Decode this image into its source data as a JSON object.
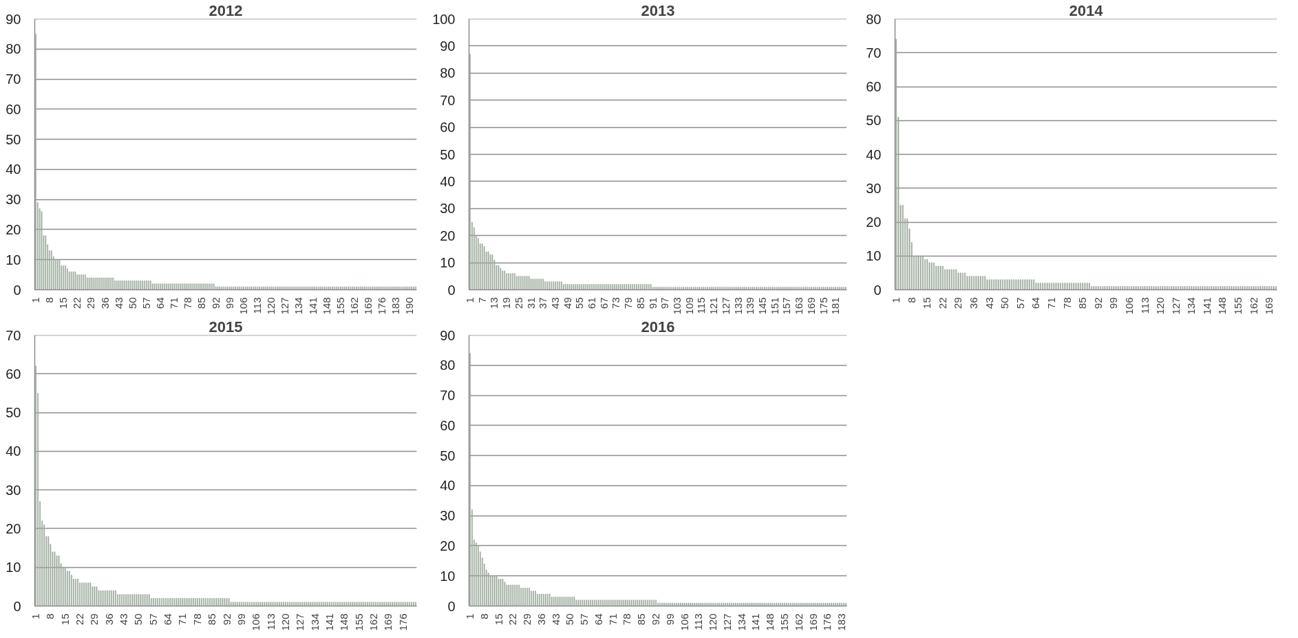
{
  "chart_data": [
    {
      "type": "bar",
      "title": "2012",
      "color": "#9eab9e",
      "grid": "y",
      "ylim": [
        0,
        90
      ],
      "yticks": [
        0,
        10,
        20,
        30,
        40,
        50,
        60,
        70,
        80,
        90
      ],
      "categories": [
        "1",
        null,
        null,
        null,
        null,
        null,
        null,
        "8",
        null,
        null,
        null,
        null,
        null,
        null,
        "15",
        null,
        null,
        null,
        null,
        null,
        null,
        "22",
        null,
        null,
        null,
        null,
        null,
        null,
        "29",
        null,
        null,
        null,
        null,
        null,
        null,
        "36",
        null,
        null,
        null,
        null,
        null,
        null,
        "43",
        null,
        null,
        null,
        null,
        null,
        null,
        "50",
        null,
        null,
        null,
        null,
        null,
        null,
        "57",
        null,
        null,
        null,
        null,
        null,
        null,
        "64",
        null,
        null,
        null,
        null,
        null,
        null,
        "71",
        null,
        null,
        null,
        null,
        null,
        null,
        "78",
        null,
        null,
        null,
        null,
        null,
        null,
        "85",
        null,
        null,
        null,
        null,
        null,
        null,
        "92",
        null,
        null,
        null,
        null,
        null,
        null,
        "99",
        null,
        null,
        null,
        null,
        null,
        null,
        "106",
        null,
        null,
        null,
        null,
        null,
        null,
        "113",
        null,
        null,
        null,
        null,
        null,
        null,
        "120",
        null,
        null,
        null,
        null,
        null,
        null,
        "127",
        null,
        null,
        null,
        null,
        null,
        null,
        "134",
        null,
        null,
        null,
        null,
        null,
        null,
        "141",
        null,
        null,
        null,
        null,
        null,
        null,
        "148",
        null,
        null,
        null,
        null,
        null,
        null,
        "155",
        null,
        null,
        null,
        null,
        null,
        null,
        "162",
        null,
        null,
        null,
        null,
        null,
        null,
        "169",
        null,
        null,
        null,
        null,
        null,
        null,
        "176",
        null,
        null,
        null,
        null,
        null,
        null,
        "183",
        null,
        null,
        null,
        null,
        null,
        null,
        "190",
        null,
        null,
        null
      ],
      "values": [
        85,
        29,
        27,
        26,
        18,
        18,
        15,
        13,
        13,
        11,
        10,
        10,
        10,
        8,
        8,
        8,
        7,
        6,
        6,
        6,
        6,
        5,
        5,
        5,
        5,
        5,
        4,
        4,
        4,
        4,
        4,
        4,
        4,
        4,
        4,
        4,
        4,
        4,
        4,
        4,
        3,
        3,
        3,
        3,
        3,
        3,
        3,
        3,
        3,
        3,
        3,
        3,
        3,
        3,
        3,
        3,
        3,
        3,
        3,
        2,
        2,
        2,
        2,
        2,
        2,
        2,
        2,
        2,
        2,
        2,
        2,
        2,
        2,
        2,
        2,
        2,
        2,
        2,
        2,
        2,
        2,
        2,
        2,
        2,
        2,
        2,
        2,
        2,
        2,
        2,
        2,
        1,
        1,
        1,
        1,
        1,
        1,
        1,
        1,
        1,
        1,
        1,
        1,
        1,
        1,
        1,
        1,
        1,
        1,
        1,
        1,
        1,
        1,
        1,
        1,
        1,
        1,
        1,
        1,
        1,
        1,
        1,
        1,
        1,
        1,
        1,
        1,
        1,
        1,
        1,
        1,
        1,
        1,
        1,
        1,
        1,
        1,
        1,
        1,
        1,
        1,
        1,
        1,
        1,
        1,
        1,
        1,
        1,
        1,
        1,
        1,
        1,
        1,
        1,
        1,
        1,
        1,
        1,
        1,
        1,
        1,
        1,
        1,
        1,
        1,
        1,
        1,
        1,
        1,
        1,
        1,
        1,
        1,
        1,
        1,
        1,
        1,
        1,
        1,
        1,
        1,
        1,
        1,
        1,
        1,
        1,
        1,
        1,
        1,
        1,
        1,
        1,
        1
      ]
    },
    {
      "type": "bar",
      "title": "2013",
      "color": "#9eab9e",
      "grid": "y",
      "ylim": [
        0,
        100
      ],
      "yticks": [
        0,
        10,
        20,
        30,
        40,
        50,
        60,
        70,
        80,
        90,
        100
      ],
      "categories": [
        "1",
        null,
        null,
        null,
        null,
        null,
        "7",
        null,
        null,
        null,
        null,
        null,
        "13",
        null,
        null,
        null,
        null,
        null,
        "19",
        null,
        null,
        null,
        null,
        null,
        "25",
        null,
        null,
        null,
        null,
        null,
        "31",
        null,
        null,
        null,
        null,
        null,
        "37",
        null,
        null,
        null,
        null,
        null,
        "43",
        null,
        null,
        null,
        null,
        null,
        "49",
        null,
        null,
        null,
        null,
        null,
        "55",
        null,
        null,
        null,
        null,
        null,
        "61",
        null,
        null,
        null,
        null,
        null,
        "67",
        null,
        null,
        null,
        null,
        null,
        "73",
        null,
        null,
        null,
        null,
        null,
        "79",
        null,
        null,
        null,
        null,
        null,
        "85",
        null,
        null,
        null,
        null,
        null,
        "91",
        null,
        null,
        null,
        null,
        null,
        "97",
        null,
        null,
        null,
        null,
        null,
        "103",
        null,
        null,
        null,
        null,
        null,
        "109",
        null,
        null,
        null,
        null,
        null,
        "115",
        null,
        null,
        null,
        null,
        null,
        "121",
        null,
        null,
        null,
        null,
        null,
        "127",
        null,
        null,
        null,
        null,
        null,
        "133",
        null,
        null,
        null,
        null,
        null,
        "139",
        null,
        null,
        null,
        null,
        null,
        "145",
        null,
        null,
        null,
        null,
        null,
        "151",
        null,
        null,
        null,
        null,
        null,
        "157",
        null,
        null,
        null,
        null,
        null,
        "163",
        null,
        null,
        null,
        null,
        null,
        "169",
        null,
        null,
        null,
        null,
        null,
        "175",
        null,
        null,
        null,
        null,
        null,
        "181",
        null,
        null,
        null,
        null,
        null
      ],
      "values": [
        87,
        25,
        23,
        20,
        19,
        17,
        17,
        16,
        14,
        14,
        13,
        13,
        11,
        9,
        9,
        8,
        7,
        7,
        6,
        6,
        6,
        6,
        6,
        5,
        5,
        5,
        5,
        5,
        5,
        5,
        4,
        4,
        4,
        4,
        4,
        4,
        4,
        3,
        3,
        3,
        3,
        3,
        3,
        3,
        3,
        3,
        2,
        2,
        2,
        2,
        2,
        2,
        2,
        2,
        2,
        2,
        2,
        2,
        2,
        2,
        2,
        2,
        2,
        2,
        2,
        2,
        2,
        2,
        2,
        2,
        2,
        2,
        2,
        2,
        2,
        2,
        2,
        2,
        2,
        2,
        2,
        2,
        2,
        2,
        2,
        2,
        2,
        2,
        2,
        2,
        1,
        1,
        1,
        1,
        1,
        1,
        1,
        1,
        1,
        1,
        1,
        1,
        1,
        1,
        1,
        1,
        1,
        1,
        1,
        1,
        1,
        1,
        1,
        1,
        1,
        1,
        1,
        1,
        1,
        1,
        1,
        1,
        1,
        1,
        1,
        1,
        1,
        1,
        1,
        1,
        1,
        1,
        1,
        1,
        1,
        1,
        1,
        1,
        1,
        1,
        1,
        1,
        1,
        1,
        1,
        1,
        1,
        1,
        1,
        1,
        1,
        1,
        1,
        1,
        1,
        1,
        1,
        1,
        1,
        1,
        1,
        1,
        1,
        1,
        1,
        1,
        1,
        1,
        1,
        1,
        1,
        1,
        1,
        1,
        1,
        1,
        1,
        1,
        1,
        1,
        1,
        1,
        1,
        1,
        1,
        1
      ]
    },
    {
      "type": "bar",
      "title": "2014",
      "color": "#9eab9e",
      "grid": "y",
      "ylim": [
        0,
        80
      ],
      "yticks": [
        0,
        10,
        20,
        30,
        40,
        50,
        60,
        70,
        80
      ],
      "categories": [
        "1",
        null,
        null,
        null,
        null,
        null,
        null,
        "8",
        null,
        null,
        null,
        null,
        null,
        null,
        "15",
        null,
        null,
        null,
        null,
        null,
        null,
        "22",
        null,
        null,
        null,
        null,
        null,
        null,
        "29",
        null,
        null,
        null,
        null,
        null,
        null,
        "36",
        null,
        null,
        null,
        null,
        null,
        null,
        "43",
        null,
        null,
        null,
        null,
        null,
        null,
        "50",
        null,
        null,
        null,
        null,
        null,
        null,
        "57",
        null,
        null,
        null,
        null,
        null,
        null,
        "64",
        null,
        null,
        null,
        null,
        null,
        null,
        "71",
        null,
        null,
        null,
        null,
        null,
        null,
        "78",
        null,
        null,
        null,
        null,
        null,
        null,
        "85",
        null,
        null,
        null,
        null,
        null,
        null,
        "92",
        null,
        null,
        null,
        null,
        null,
        null,
        "99",
        null,
        null,
        null,
        null,
        null,
        null,
        "106",
        null,
        null,
        null,
        null,
        null,
        null,
        "113",
        null,
        null,
        null,
        null,
        null,
        null,
        "120",
        null,
        null,
        null,
        null,
        null,
        null,
        "127",
        null,
        null,
        null,
        null,
        null,
        null,
        "134",
        null,
        null,
        null,
        null,
        null,
        null,
        "141",
        null,
        null,
        null,
        null,
        null,
        null,
        "148",
        null,
        null,
        null,
        null,
        null,
        null,
        "155",
        null,
        null,
        null,
        null,
        null,
        null,
        "162",
        null,
        null,
        null,
        null,
        null,
        null,
        "169",
        null,
        null,
        null
      ],
      "values": [
        74,
        51,
        25,
        25,
        21,
        21,
        18,
        14,
        10,
        10,
        10,
        10,
        10,
        9,
        9,
        8,
        8,
        8,
        7,
        7,
        7,
        7,
        6,
        6,
        6,
        6,
        6,
        6,
        5,
        5,
        5,
        5,
        4,
        4,
        4,
        4,
        4,
        4,
        4,
        4,
        4,
        3,
        3,
        3,
        3,
        3,
        3,
        3,
        3,
        3,
        3,
        3,
        3,
        3,
        3,
        3,
        3,
        3,
        3,
        3,
        3,
        3,
        3,
        2,
        2,
        2,
        2,
        2,
        2,
        2,
        2,
        2,
        2,
        2,
        2,
        2,
        2,
        2,
        2,
        2,
        2,
        2,
        2,
        2,
        2,
        2,
        2,
        2,
        1,
        1,
        1,
        1,
        1,
        1,
        1,
        1,
        1,
        1,
        1,
        1,
        1,
        1,
        1,
        1,
        1,
        1,
        1,
        1,
        1,
        1,
        1,
        1,
        1,
        1,
        1,
        1,
        1,
        1,
        1,
        1,
        1,
        1,
        1,
        1,
        1,
        1,
        1,
        1,
        1,
        1,
        1,
        1,
        1,
        1,
        1,
        1,
        1,
        1,
        1,
        1,
        1,
        1,
        1,
        1,
        1,
        1,
        1,
        1,
        1,
        1,
        1,
        1,
        1,
        1,
        1,
        1,
        1,
        1,
        1,
        1,
        1,
        1,
        1,
        1,
        1,
        1,
        1,
        1,
        1,
        1,
        1,
        1
      ]
    },
    {
      "type": "bar",
      "title": "2015",
      "color": "#9eab9e",
      "grid": "y",
      "ylim": [
        0,
        70
      ],
      "yticks": [
        0,
        10,
        20,
        30,
        40,
        50,
        60,
        70
      ],
      "categories": [
        "1",
        null,
        null,
        null,
        null,
        null,
        null,
        "8",
        null,
        null,
        null,
        null,
        null,
        null,
        "15",
        null,
        null,
        null,
        null,
        null,
        null,
        "22",
        null,
        null,
        null,
        null,
        null,
        null,
        "29",
        null,
        null,
        null,
        null,
        null,
        null,
        "36",
        null,
        null,
        null,
        null,
        null,
        null,
        "43",
        null,
        null,
        null,
        null,
        null,
        null,
        "50",
        null,
        null,
        null,
        null,
        null,
        null,
        "57",
        null,
        null,
        null,
        null,
        null,
        null,
        "64",
        null,
        null,
        null,
        null,
        null,
        null,
        "71",
        null,
        null,
        null,
        null,
        null,
        null,
        "78",
        null,
        null,
        null,
        null,
        null,
        null,
        "85",
        null,
        null,
        null,
        null,
        null,
        null,
        "92",
        null,
        null,
        null,
        null,
        null,
        null,
        "99",
        null,
        null,
        null,
        null,
        null,
        null,
        "106",
        null,
        null,
        null,
        null,
        null,
        null,
        "113",
        null,
        null,
        null,
        null,
        null,
        null,
        "120",
        null,
        null,
        null,
        null,
        null,
        null,
        "127",
        null,
        null,
        null,
        null,
        null,
        null,
        "134",
        null,
        null,
        null,
        null,
        null,
        null,
        "141",
        null,
        null,
        null,
        null,
        null,
        null,
        "148",
        null,
        null,
        null,
        null,
        null,
        null,
        "155",
        null,
        null,
        null,
        null,
        null,
        null,
        "162",
        null,
        null,
        null,
        null,
        null,
        null,
        "169",
        null,
        null,
        null,
        null,
        null,
        null,
        "176",
        null,
        null,
        null,
        null,
        null,
        null
      ],
      "values": [
        62,
        55,
        27,
        22,
        21,
        18,
        18,
        16,
        14,
        14,
        13,
        13,
        11,
        10,
        10,
        9,
        9,
        8,
        7,
        7,
        7,
        6,
        6,
        6,
        6,
        6,
        6,
        5,
        5,
        5,
        4,
        4,
        4,
        4,
        4,
        4,
        4,
        4,
        4,
        3,
        3,
        3,
        3,
        3,
        3,
        3,
        3,
        3,
        3,
        3,
        3,
        3,
        3,
        3,
        3,
        2,
        2,
        2,
        2,
        2,
        2,
        2,
        2,
        2,
        2,
        2,
        2,
        2,
        2,
        2,
        2,
        2,
        2,
        2,
        2,
        2,
        2,
        2,
        2,
        2,
        2,
        2,
        2,
        2,
        2,
        2,
        2,
        2,
        2,
        2,
        2,
        2,
        2,
        1,
        1,
        1,
        1,
        1,
        1,
        1,
        1,
        1,
        1,
        1,
        1,
        1,
        1,
        1,
        1,
        1,
        1,
        1,
        1,
        1,
        1,
        1,
        1,
        1,
        1,
        1,
        1,
        1,
        1,
        1,
        1,
        1,
        1,
        1,
        1,
        1,
        1,
        1,
        1,
        1,
        1,
        1,
        1,
        1,
        1,
        1,
        1,
        1,
        1,
        1,
        1,
        1,
        1,
        1,
        1,
        1,
        1,
        1,
        1,
        1,
        1,
        1,
        1,
        1,
        1,
        1,
        1,
        1,
        1,
        1,
        1,
        1,
        1,
        1,
        1,
        1,
        1,
        1,
        1,
        1,
        1,
        1,
        1,
        1,
        1,
        1,
        1,
        1
      ]
    },
    {
      "type": "bar",
      "title": "2016",
      "color": "#9eab9e",
      "grid": "y",
      "ylim": [
        0,
        90
      ],
      "yticks": [
        0,
        10,
        20,
        30,
        40,
        50,
        60,
        70,
        80,
        90
      ],
      "categories": [
        "1",
        null,
        null,
        null,
        null,
        null,
        null,
        "8",
        null,
        null,
        null,
        null,
        null,
        null,
        "15",
        null,
        null,
        null,
        null,
        null,
        null,
        "22",
        null,
        null,
        null,
        null,
        null,
        null,
        "29",
        null,
        null,
        null,
        null,
        null,
        null,
        "36",
        null,
        null,
        null,
        null,
        null,
        null,
        "43",
        null,
        null,
        null,
        null,
        null,
        null,
        "50",
        null,
        null,
        null,
        null,
        null,
        null,
        "57",
        null,
        null,
        null,
        null,
        null,
        null,
        "64",
        null,
        null,
        null,
        null,
        null,
        null,
        "71",
        null,
        null,
        null,
        null,
        null,
        null,
        "78",
        null,
        null,
        null,
        null,
        null,
        null,
        "85",
        null,
        null,
        null,
        null,
        null,
        null,
        "92",
        null,
        null,
        null,
        null,
        null,
        null,
        "99",
        null,
        null,
        null,
        null,
        null,
        null,
        "106",
        null,
        null,
        null,
        null,
        null,
        null,
        "113",
        null,
        null,
        null,
        null,
        null,
        null,
        "120",
        null,
        null,
        null,
        null,
        null,
        null,
        "127",
        null,
        null,
        null,
        null,
        null,
        null,
        "134",
        null,
        null,
        null,
        null,
        null,
        null,
        "141",
        null,
        null,
        null,
        null,
        null,
        null,
        "148",
        null,
        null,
        null,
        null,
        null,
        null,
        "155",
        null,
        null,
        null,
        null,
        null,
        null,
        "162",
        null,
        null,
        null,
        null,
        null,
        null,
        "169",
        null,
        null,
        null,
        null,
        null,
        null,
        "176",
        null,
        null,
        null,
        null,
        null,
        null,
        "183",
        null,
        null
      ],
      "values": [
        84,
        32,
        22,
        21,
        20,
        18,
        16,
        14,
        12,
        11,
        10,
        10,
        10,
        10,
        9,
        9,
        9,
        8,
        7,
        7,
        7,
        7,
        7,
        7,
        7,
        6,
        6,
        6,
        6,
        6,
        5,
        5,
        5,
        4,
        4,
        4,
        4,
        4,
        4,
        4,
        3,
        3,
        3,
        3,
        3,
        3,
        3,
        3,
        3,
        3,
        3,
        3,
        2,
        2,
        2,
        2,
        2,
        2,
        2,
        2,
        2,
        2,
        2,
        2,
        2,
        2,
        2,
        2,
        2,
        2,
        2,
        2,
        2,
        2,
        2,
        2,
        2,
        2,
        2,
        2,
        2,
        2,
        2,
        2,
        2,
        2,
        2,
        2,
        2,
        2,
        2,
        2,
        1,
        1,
        1,
        1,
        1,
        1,
        1,
        1,
        1,
        1,
        1,
        1,
        1,
        1,
        1,
        1,
        1,
        1,
        1,
        1,
        1,
        1,
        1,
        1,
        1,
        1,
        1,
        1,
        1,
        1,
        1,
        1,
        1,
        1,
        1,
        1,
        1,
        1,
        1,
        1,
        1,
        1,
        1,
        1,
        1,
        1,
        1,
        1,
        1,
        1,
        1,
        1,
        1,
        1,
        1,
        1,
        1,
        1,
        1,
        1,
        1,
        1,
        1,
        1,
        1,
        1,
        1,
        1,
        1,
        1,
        1,
        1,
        1,
        1,
        1,
        1,
        1,
        1,
        1,
        1,
        1,
        1,
        1,
        1,
        1,
        1,
        1,
        1,
        1,
        1,
        1,
        1,
        1
      ]
    }
  ]
}
